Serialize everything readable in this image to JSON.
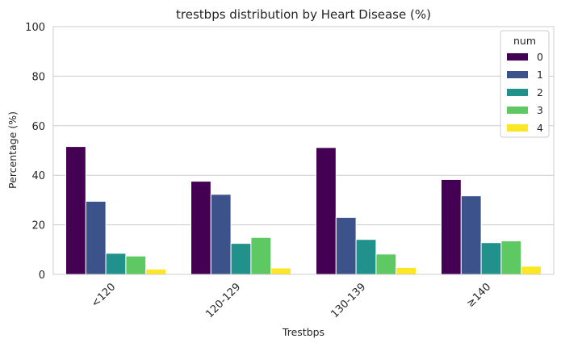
{
  "chart_data": {
    "type": "bar",
    "title": "trestbps distribution by Heart Disease (%)",
    "xlabel": "Trestbps",
    "ylabel": "Percentage (%)",
    "ylim": [
      0,
      100
    ],
    "yticks": [
      0,
      20,
      40,
      60,
      80,
      100
    ],
    "grid": true,
    "categories": [
      "<120",
      "120-129",
      "130-139",
      "≥140"
    ],
    "legend": {
      "title": "num",
      "placement": "top-right"
    },
    "series": [
      {
        "name": "0",
        "color": "#440154",
        "values": [
          51.6,
          37.6,
          51.2,
          38.3
        ]
      },
      {
        "name": "1",
        "color": "#3b528b",
        "values": [
          29.5,
          32.3,
          23.0,
          31.7
        ]
      },
      {
        "name": "2",
        "color": "#21918c",
        "values": [
          8.5,
          12.5,
          14.1,
          12.8
        ]
      },
      {
        "name": "3",
        "color": "#5ec962",
        "values": [
          7.4,
          14.9,
          8.2,
          13.5
        ]
      },
      {
        "name": "4",
        "color": "#fde725",
        "values": [
          2.1,
          2.6,
          2.8,
          3.3
        ]
      }
    ]
  }
}
